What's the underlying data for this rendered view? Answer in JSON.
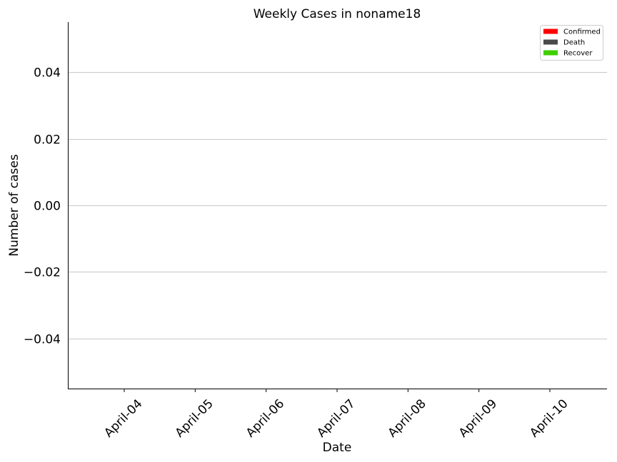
{
  "chart_data": {
    "type": "bar",
    "title": "Weekly Cases in noname18",
    "xlabel": "Date",
    "ylabel": "Number of cases",
    "categories": [
      "April-04",
      "April-05",
      "April-06",
      "April-07",
      "April-08",
      "April-09",
      "April-10"
    ],
    "series": [
      {
        "name": "Confirmed",
        "color": "#ff0000",
        "values": [
          0,
          0,
          0,
          0,
          0,
          0,
          0
        ]
      },
      {
        "name": "Death",
        "color": "#4a4a4a",
        "values": [
          0,
          0,
          0,
          0,
          0,
          0,
          0
        ]
      },
      {
        "name": "Recover",
        "color": "#3fcf00",
        "values": [
          0,
          0,
          0,
          0,
          0,
          0,
          0
        ]
      }
    ],
    "ylim": [
      -0.055,
      0.055
    ],
    "yticks": [
      0.04,
      0.02,
      0.0,
      -0.02,
      -0.04
    ],
    "ytick_labels": [
      "0.04",
      "0.02",
      "0.00",
      "−0.02",
      "−0.04"
    ],
    "grid": "horizontal",
    "legend_position": "top-right"
  }
}
